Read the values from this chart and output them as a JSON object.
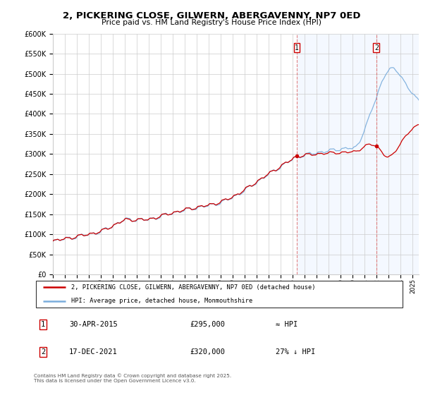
{
  "title": "2, PICKERING CLOSE, GILWERN, ABERGAVENNY, NP7 0ED",
  "subtitle": "Price paid vs. HM Land Registry's House Price Index (HPI)",
  "ylim": [
    0,
    600000
  ],
  "xlim_start": 1995.0,
  "xlim_end": 2025.5,
  "legend_line1": "2, PICKERING CLOSE, GILWERN, ABERGAVENNY, NP7 0ED (detached house)",
  "legend_line2": "HPI: Average price, detached house, Monmouthshire",
  "annotation1_label": "1",
  "annotation1_date": "30-APR-2015",
  "annotation1_price": "£295,000",
  "annotation1_hpi": "≈ HPI",
  "annotation2_label": "2",
  "annotation2_date": "17-DEC-2021",
  "annotation2_price": "£320,000",
  "annotation2_hpi": "27% ↓ HPI",
  "footer": "Contains HM Land Registry data © Crown copyright and database right 2025.\nThis data is licensed under the Open Government Licence v3.0.",
  "line_color_red": "#cc0000",
  "line_color_blue": "#7aaddc",
  "vline_color": "#cc0000",
  "plot_bg": "#ffffff",
  "marker1_x": 2015.33,
  "marker1_y": 295000,
  "marker2_x": 2021.96,
  "marker2_y": 320000,
  "vline1_x": 2015.33,
  "vline2_x": 2021.96,
  "shaded_start": 2015.33,
  "shaded_end": 2025.5
}
